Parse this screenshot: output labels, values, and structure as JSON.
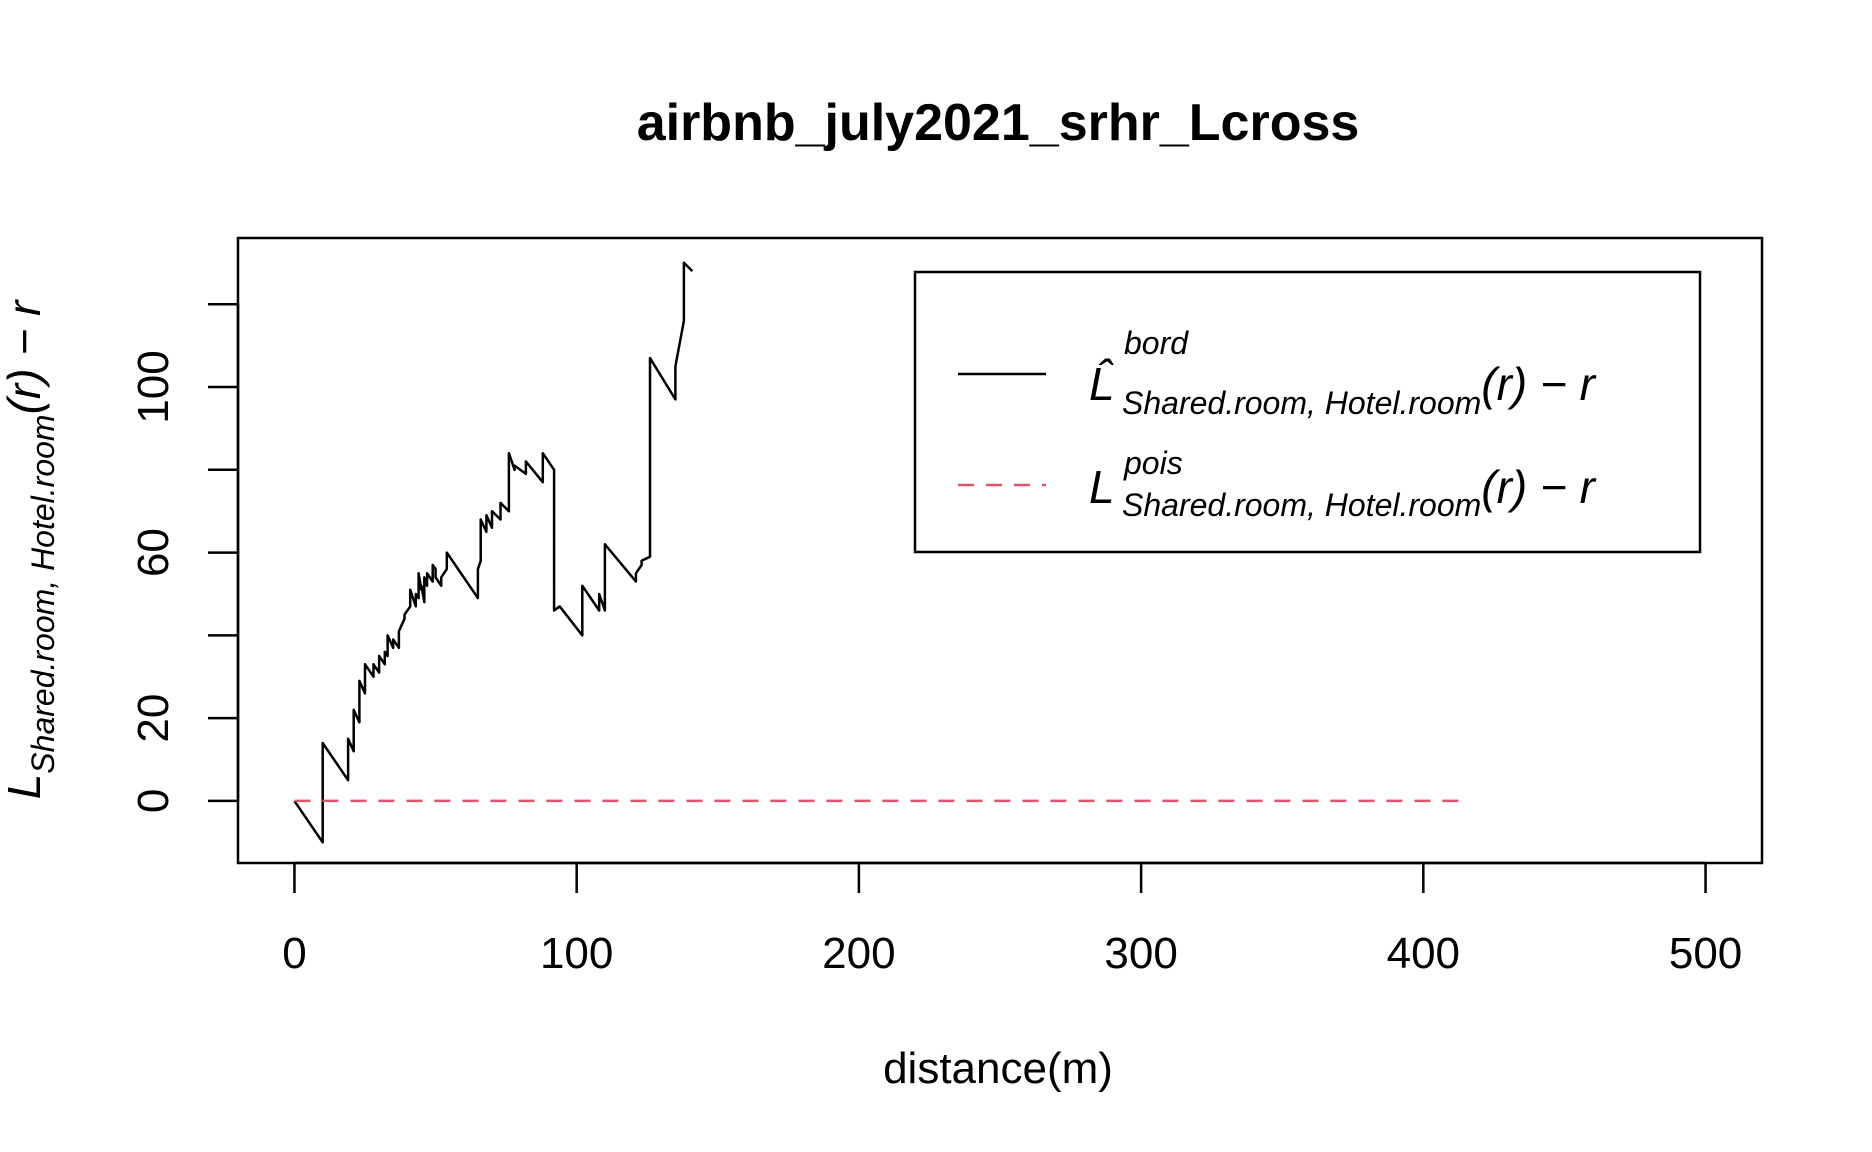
{
  "chart_data": {
    "type": "line",
    "title": "airbnb_july2021_srhr_Lcross",
    "xlabel": "distance(m)",
    "ylabel": {
      "base": "L",
      "subscript": "Shared.room, Hotel.room",
      "tail": "(r) − r"
    },
    "xlim": [
      -20,
      520
    ],
    "ylim": [
      -15,
      136
    ],
    "x_ticks": [
      0,
      100,
      200,
      300,
      400,
      500
    ],
    "y_ticks": [
      0,
      20,
      40,
      60,
      80,
      100,
      120
    ],
    "y_tick_labels": [
      "0",
      "20",
      "",
      "60",
      "",
      "100",
      ""
    ],
    "grid": false,
    "legend_position": "top-right",
    "series": [
      {
        "name": "bord",
        "legend": {
          "base": "L̂",
          "superscript": "bord",
          "subscript": "Shared.room, Hotel.room",
          "tail": "(r) − r"
        },
        "color": "#000000",
        "dash": "solid",
        "x": [
          0,
          10,
          10,
          19,
          19,
          21,
          21,
          23,
          23,
          25,
          25,
          28,
          28,
          30,
          30,
          32,
          32,
          33,
          33,
          35,
          35,
          37,
          37,
          39,
          39,
          41,
          41,
          43,
          43,
          44,
          44,
          45,
          45,
          46,
          46,
          47,
          47,
          49,
          49,
          50,
          50,
          52,
          52,
          54,
          54,
          65,
          65,
          66,
          66,
          68,
          68,
          70,
          70,
          73,
          73,
          76,
          76,
          78,
          78,
          82,
          82,
          88,
          88,
          92,
          92,
          94,
          94,
          102,
          102,
          108,
          108,
          110,
          110,
          121,
          121,
          123,
          123,
          126,
          126,
          135,
          135,
          138,
          138,
          141
        ],
        "y": [
          0,
          -10,
          14,
          5,
          15,
          12,
          22,
          19,
          29,
          26,
          33,
          30,
          33,
          31,
          35,
          33,
          36,
          35,
          40,
          37,
          39,
          37,
          41,
          44,
          45,
          47,
          51,
          47,
          50,
          49,
          55,
          51,
          52,
          48,
          54,
          52,
          55,
          53,
          57,
          56,
          54,
          52,
          54,
          56,
          60,
          49,
          56,
          58,
          68,
          65,
          69,
          66,
          70,
          68,
          72,
          70,
          84,
          80,
          81,
          79,
          82,
          77,
          84,
          80,
          46,
          47,
          47,
          40,
          52,
          46,
          50,
          46,
          62,
          53,
          55,
          57,
          58,
          59,
          107,
          97,
          105,
          116,
          130,
          128
        ]
      },
      {
        "name": "pois",
        "legend": {
          "base": "L",
          "superscript": "pois",
          "subscript": "Shared.room, Hotel.room",
          "tail": "(r) − r"
        },
        "color": "#DF536B",
        "dash": "dashed",
        "x": [
          0,
          416
        ],
        "y": [
          0,
          0
        ]
      }
    ]
  }
}
